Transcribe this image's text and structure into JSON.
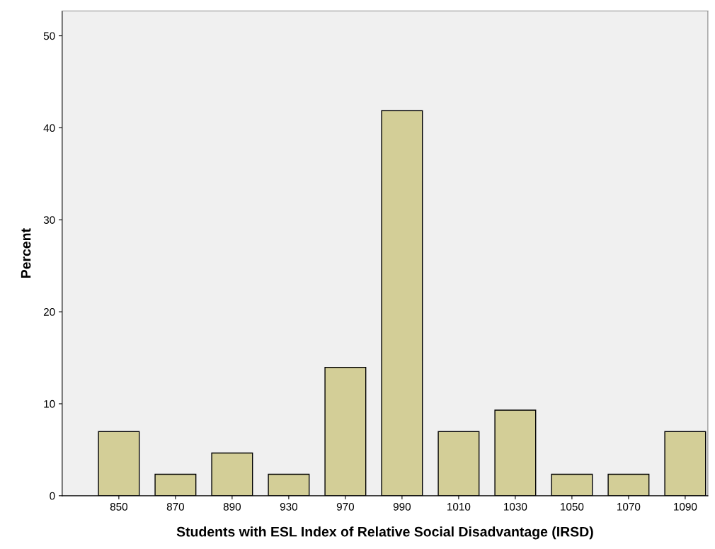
{
  "chart_data": {
    "type": "bar",
    "xlabel": "Students with ESL Index of Relative Social Disadvantage (IRSD)",
    "ylabel": "Percent",
    "categories": [
      "850",
      "870",
      "890",
      "930",
      "970",
      "990",
      "1010",
      "1030",
      "1050",
      "1070",
      "1090"
    ],
    "values": [
      6.98,
      2.33,
      4.65,
      2.33,
      13.95,
      41.86,
      6.98,
      9.3,
      2.33,
      2.33,
      6.98
    ],
    "color": "#d3ce97",
    "ylim": [
      0,
      52.7
    ],
    "yticks": [
      0,
      10,
      20,
      30,
      40,
      50
    ],
    "grid": false,
    "legend": false
  }
}
